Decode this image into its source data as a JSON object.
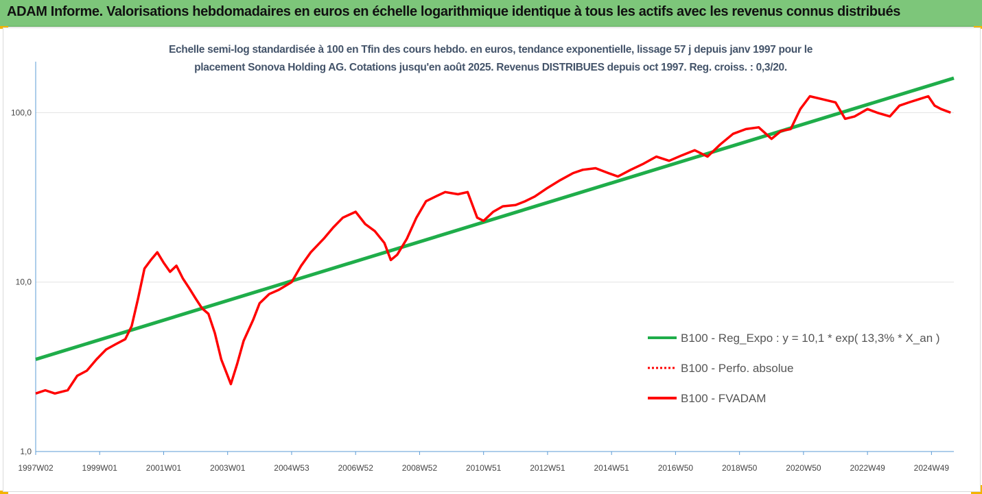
{
  "header": {
    "title": "ADAM Informe. Valorisations hebdomadaires en euros en échelle logarithmique identique à tous les actifs avec les revenus connus distribués"
  },
  "chart_data": {
    "type": "line",
    "title_line1": "Echelle semi-log standardisée à 100 en Tfin des cours hebdo. en euros, tendance exponentielle, lissage 57 j depuis janv 1997 pour le",
    "title_line2": "placement Sonova Holding AG. Cotations jusqu'en août 2025. Revenus DISTRIBUES depuis oct 1997. Reg. croiss. : 0,3/20.",
    "y_scale": "log",
    "ylim": [
      1,
      200
    ],
    "y_ticks": [
      {
        "value": 1,
        "label": "1,0"
      },
      {
        "value": 10,
        "label": "10,0"
      },
      {
        "value": 100,
        "label": "100,0"
      }
    ],
    "xlim": [
      1997.0,
      2025.7
    ],
    "x_ticks": [
      {
        "value": 1997.0,
        "label": "1997W02"
      },
      {
        "value": 1999.0,
        "label": "1999W01"
      },
      {
        "value": 2001.0,
        "label": "2001W01"
      },
      {
        "value": 2003.0,
        "label": "2003W01"
      },
      {
        "value": 2005.0,
        "label": "2004W53"
      },
      {
        "value": 2007.0,
        "label": "2006W52"
      },
      {
        "value": 2009.0,
        "label": "2008W52"
      },
      {
        "value": 2011.0,
        "label": "2010W51"
      },
      {
        "value": 2013.0,
        "label": "2012W51"
      },
      {
        "value": 2015.0,
        "label": "2014W51"
      },
      {
        "value": 2017.0,
        "label": "2016W50"
      },
      {
        "value": 2019.0,
        "label": "2018W50"
      },
      {
        "value": 2021.0,
        "label": "2020W50"
      },
      {
        "value": 2023.0,
        "label": "2022W49"
      },
      {
        "value": 2025.0,
        "label": "2024W49"
      }
    ],
    "grid": "horizontal",
    "legend_position": "right",
    "series": [
      {
        "name": "B100 - Reg_Expo : y = 10,1 * exp( 13,3% *  X_an )",
        "color": "#1fad4a",
        "style": "solid",
        "x": [
          1997.0,
          2025.7
        ],
        "y": [
          3.5,
          160
        ]
      },
      {
        "name": "B100 - Perfo. absolue",
        "color": "#ff0000",
        "style": "dotted",
        "x": [],
        "y": []
      },
      {
        "name": "B100 - FVADAM",
        "color": "#ff0000",
        "style": "solid",
        "x": [
          1997.0,
          1997.3,
          1997.6,
          1998.0,
          1998.3,
          1998.6,
          1998.9,
          1999.2,
          1999.5,
          1999.8,
          2000.0,
          2000.2,
          2000.4,
          2000.6,
          2000.8,
          2001.0,
          2001.2,
          2001.4,
          2001.6,
          2001.8,
          2002.0,
          2002.2,
          2002.4,
          2002.6,
          2002.8,
          2003.0,
          2003.1,
          2003.3,
          2003.5,
          2003.8,
          2004.0,
          2004.3,
          2004.6,
          2005.0,
          2005.3,
          2005.6,
          2006.0,
          2006.3,
          2006.6,
          2007.0,
          2007.3,
          2007.6,
          2007.9,
          2008.1,
          2008.3,
          2008.6,
          2008.9,
          2009.2,
          2009.5,
          2009.8,
          2010.2,
          2010.5,
          2010.8,
          2011.0,
          2011.3,
          2011.6,
          2012.0,
          2012.3,
          2012.6,
          2013.0,
          2013.4,
          2013.8,
          2014.1,
          2014.5,
          2014.9,
          2015.2,
          2015.6,
          2016.0,
          2016.4,
          2016.8,
          2017.2,
          2017.6,
          2018.0,
          2018.4,
          2018.8,
          2019.2,
          2019.6,
          2020.0,
          2020.3,
          2020.6,
          2020.9,
          2021.2,
          2021.6,
          2022.0,
          2022.3,
          2022.6,
          2023.0,
          2023.3,
          2023.7,
          2024.0,
          2024.3,
          2024.6,
          2024.9,
          2025.1,
          2025.3,
          2025.6
        ],
        "y": [
          2.2,
          2.3,
          2.2,
          2.3,
          2.8,
          3.0,
          3.5,
          4.0,
          4.3,
          4.6,
          5.5,
          8.0,
          12.0,
          13.5,
          15.0,
          13.0,
          11.5,
          12.5,
          10.5,
          9.2,
          8.0,
          7.0,
          6.5,
          5.0,
          3.5,
          2.8,
          2.5,
          3.3,
          4.5,
          6.0,
          7.5,
          8.5,
          9.0,
          10.0,
          12.5,
          15.0,
          18.0,
          21.0,
          24.0,
          26.0,
          22.0,
          20.0,
          17.0,
          13.5,
          14.5,
          18.0,
          24.0,
          30.0,
          32.0,
          34.0,
          33.0,
          34.0,
          24.0,
          23.0,
          26.0,
          28.0,
          28.5,
          30.0,
          32.0,
          36.0,
          40.0,
          44.0,
          46.0,
          47.0,
          44.0,
          42.0,
          46.0,
          50.0,
          55.0,
          52.0,
          56.0,
          60.0,
          55.0,
          65.0,
          75.0,
          80.0,
          82.0,
          70.0,
          78.0,
          80.0,
          105.0,
          125.0,
          120.0,
          115.0,
          92.0,
          95.0,
          105.0,
          100.0,
          95.0,
          110.0,
          115.0,
          120.0,
          125.0,
          110.0,
          105.0,
          100.0
        ]
      }
    ]
  }
}
